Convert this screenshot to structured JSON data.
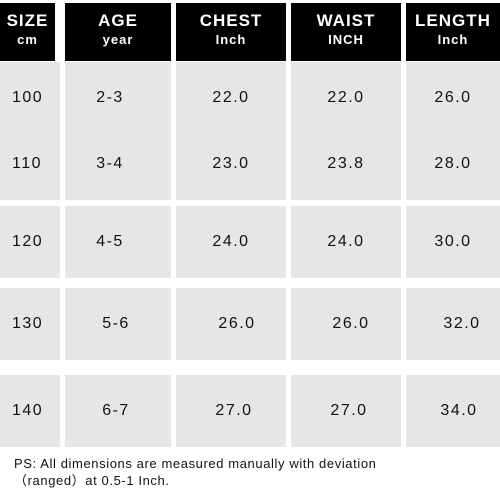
{
  "headers": [
    {
      "main": "SIZE",
      "sub": "cm"
    },
    {
      "main": "AGE",
      "sub": "year"
    },
    {
      "main": "CHEST",
      "sub": "Inch"
    },
    {
      "main": "WAIST",
      "sub": "INCH"
    },
    {
      "main": "LENGTH",
      "sub": "Inch"
    }
  ],
  "rows": [
    [
      "100",
      "2-3",
      "22.0",
      "22.0",
      "26.0"
    ],
    [
      "110",
      "3-4",
      "23.0",
      "23.8",
      "28.0"
    ],
    [
      "120",
      "4-5",
      "24.0",
      "24.0",
      "30.0"
    ],
    [
      "130",
      "5-6",
      "26.0",
      "26.0",
      "32.0"
    ],
    [
      "140",
      "6-7",
      "27.0",
      "27.0",
      "34.0"
    ]
  ],
  "note": {
    "line1": "PS:  All dimensions are measured manually with deviation",
    "line2": "（ranged）at 0.5-1 Inch."
  }
}
